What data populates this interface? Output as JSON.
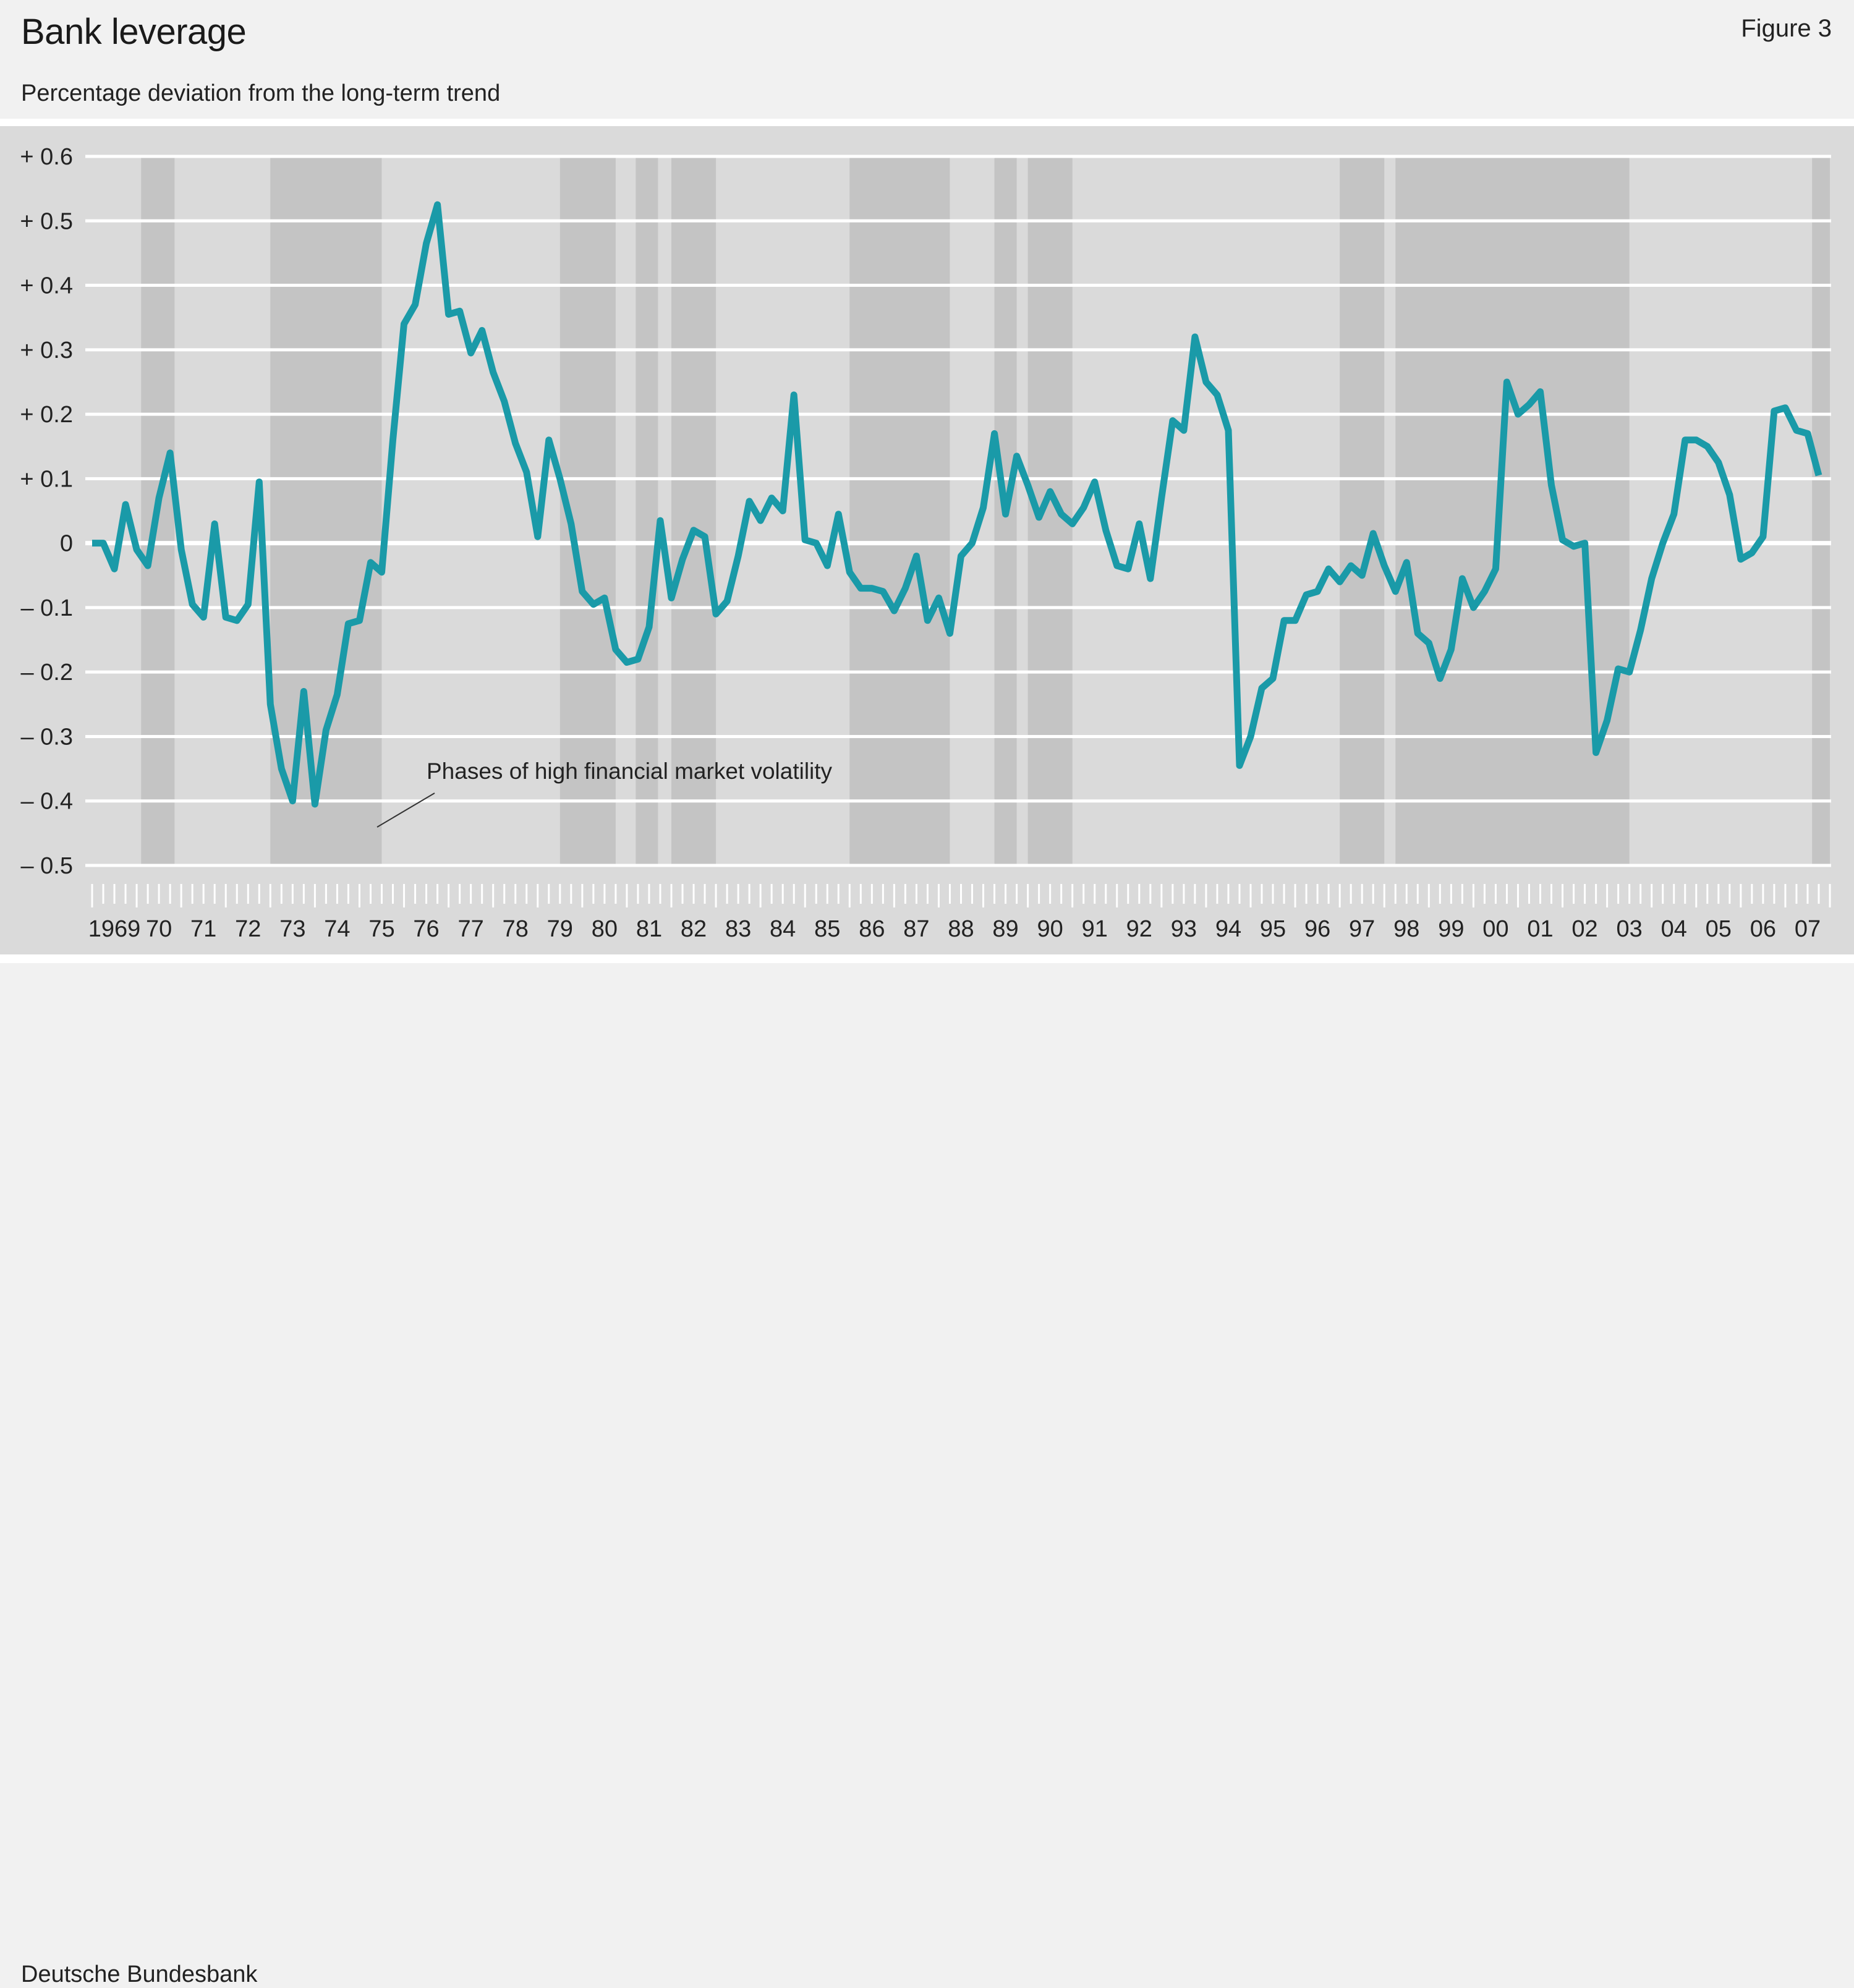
{
  "header": {
    "title": "Bank leverage",
    "figure": "Figure 3",
    "subtitle": "Percentage deviation from the long-term trend"
  },
  "footer": {
    "source": "Deutsche Bundesbank"
  },
  "annotation": "Phases of high financial market volatility",
  "colors": {
    "line": "#1a9aa8",
    "shade": "#c4c4c4",
    "plot_bg": "#dadada",
    "grid": "#ffffff"
  },
  "chart_data": {
    "type": "line",
    "title": "Bank leverage",
    "subtitle": "Percentage deviation from the long-term trend",
    "ylim": [
      -0.5,
      0.6
    ],
    "y_ticks": [
      0.6,
      0.5,
      0.4,
      0.3,
      0.2,
      0.1,
      0,
      -0.1,
      -0.2,
      -0.3,
      -0.4,
      -0.5
    ],
    "y_tick_labels": [
      "+ 0.6",
      "+ 0.5",
      "+ 0.4",
      "+ 0.3",
      "+ 0.2",
      "+ 0.1",
      "0",
      "– 0.1",
      "– 0.2",
      "– 0.3",
      "– 0.4",
      "– 0.5"
    ],
    "x_tick_labels": [
      "1969",
      "70",
      "71",
      "72",
      "73",
      "74",
      "75",
      "76",
      "77",
      "78",
      "79",
      "80",
      "81",
      "82",
      "83",
      "84",
      "85",
      "86",
      "87",
      "88",
      "89",
      "90",
      "91",
      "92",
      "93",
      "94",
      "95",
      "96",
      "97",
      "98",
      "99",
      "00",
      "01",
      "02",
      "03",
      "04",
      "05",
      "06",
      "07"
    ],
    "x_start_year": 1969,
    "x_end_year": 2008,
    "grid": true,
    "shaded_periods": [
      [
        1970.1,
        1970.85
      ],
      [
        1973.0,
        1975.5
      ],
      [
        1979.5,
        1980.75
      ],
      [
        1981.2,
        1981.7
      ],
      [
        1982.0,
        1983.0
      ],
      [
        1986.0,
        1988.25
      ],
      [
        1989.25,
        1989.75
      ],
      [
        1990.0,
        1991.0
      ],
      [
        1997.0,
        1998.0
      ],
      [
        1998.25,
        2003.5
      ],
      [
        2007.6,
        2008.0
      ]
    ],
    "series": [
      {
        "x": [
          1969.0,
          1969.25,
          1969.5,
          1969.75,
          1970.0,
          1970.25,
          1970.5,
          1970.75,
          1971.0,
          1971.25,
          1971.5,
          1971.75,
          1972.0,
          1972.25,
          1972.5,
          1972.75,
          1973.0,
          1973.25,
          1973.5,
          1973.75,
          1974.0,
          1974.25,
          1974.5,
          1974.75,
          1975.0,
          1975.25,
          1975.5,
          1975.75,
          1976.0,
          1976.25,
          1976.5,
          1976.75,
          1977.0,
          1977.25,
          1977.5,
          1977.75,
          1978.0,
          1978.25,
          1978.5,
          1978.75,
          1979.0,
          1979.25,
          1979.5,
          1979.75,
          1980.0,
          1980.25,
          1980.5,
          1980.75,
          1981.0,
          1981.25,
          1981.5,
          1981.75,
          1982.0,
          1982.25,
          1982.5,
          1982.75,
          1983.0,
          1983.25,
          1983.5,
          1983.75,
          1984.0,
          1984.25,
          1984.5,
          1984.75,
          1985.0,
          1985.25,
          1985.5,
          1985.75,
          1986.0,
          1986.25,
          1986.5,
          1986.75,
          1987.0,
          1987.25,
          1987.5,
          1987.75,
          1988.0,
          1988.25,
          1988.5,
          1988.75,
          1989.0,
          1989.25,
          1989.5,
          1989.75,
          1990.0,
          1990.25,
          1990.5,
          1990.75,
          1991.0,
          1991.25,
          1991.5,
          1991.75,
          1992.0,
          1992.25,
          1992.5,
          1992.75,
          1993.0,
          1993.25,
          1993.5,
          1993.75,
          1994.0,
          1994.25,
          1994.5,
          1994.75,
          1995.0,
          1995.25,
          1995.5,
          1995.75,
          1996.0,
          1996.25,
          1996.5,
          1996.75,
          1997.0,
          1997.25,
          1997.5,
          1997.75,
          1998.0,
          1998.25,
          1998.5,
          1998.75,
          1999.0,
          1999.25,
          1999.5,
          1999.75,
          2000.0,
          2000.25,
          2000.5,
          2000.75,
          2001.0,
          2001.25,
          2001.5,
          2001.75,
          2002.0,
          2002.25,
          2002.5,
          2002.75,
          2003.0,
          2003.25,
          2003.5,
          2003.75,
          2004.0,
          2004.25,
          2004.5,
          2004.75,
          2005.0,
          2005.25,
          2005.5,
          2005.75,
          2006.0,
          2006.25,
          2006.5,
          2006.75,
          2007.0,
          2007.25,
          2007.5,
          2007.75
        ],
        "values": [
          0.0,
          0.0,
          -0.04,
          0.06,
          -0.01,
          -0.035,
          0.07,
          0.14,
          -0.01,
          -0.095,
          -0.115,
          0.03,
          -0.115,
          -0.12,
          -0.095,
          0.095,
          -0.25,
          -0.35,
          -0.4,
          -0.23,
          -0.405,
          -0.29,
          -0.235,
          -0.125,
          -0.12,
          -0.03,
          -0.045,
          0.16,
          0.34,
          0.37,
          0.465,
          0.525,
          0.355,
          0.36,
          0.295,
          0.33,
          0.265,
          0.22,
          0.155,
          0.11,
          0.01,
          0.16,
          0.1,
          0.03,
          -0.075,
          -0.095,
          -0.085,
          -0.165,
          -0.185,
          -0.18,
          -0.13,
          0.035,
          -0.085,
          -0.025,
          0.02,
          0.01,
          -0.11,
          -0.09,
          -0.02,
          0.065,
          0.035,
          0.07,
          0.05,
          0.23,
          0.005,
          0.0,
          -0.035,
          0.045,
          -0.045,
          -0.07,
          -0.07,
          -0.075,
          -0.105,
          -0.07,
          -0.02,
          -0.12,
          -0.085,
          -0.14,
          -0.02,
          0.0,
          0.055,
          0.17,
          0.045,
          0.135,
          0.09,
          0.04,
          0.08,
          0.045,
          0.03,
          0.055,
          0.095,
          0.02,
          -0.035,
          -0.04,
          0.03,
          -0.055,
          0.07,
          0.19,
          0.175,
          0.32,
          0.25,
          0.23,
          0.175,
          -0.345,
          -0.3,
          -0.225,
          -0.21,
          -0.12,
          -0.12,
          -0.08,
          -0.075,
          -0.04,
          -0.06,
          -0.035,
          -0.05,
          0.015,
          -0.035,
          -0.075,
          -0.03,
          -0.14,
          -0.155,
          -0.21,
          -0.165,
          -0.055,
          -0.1,
          -0.075,
          -0.04,
          0.25,
          0.2,
          0.215,
          0.235,
          0.09,
          0.005,
          -0.005,
          0.0,
          -0.325,
          -0.275,
          -0.195,
          -0.2,
          -0.135,
          -0.055,
          0.0,
          0.045,
          0.16,
          0.16,
          0.15,
          0.125,
          0.075,
          -0.025,
          -0.015,
          0.01,
          0.205,
          0.21,
          0.175,
          0.17,
          0.105
        ]
      }
    ]
  }
}
